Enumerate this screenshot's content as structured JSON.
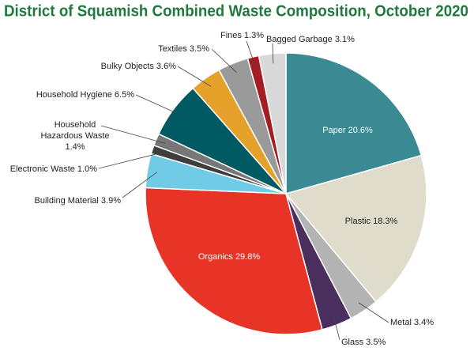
{
  "chart_data": {
    "type": "pie",
    "title": "District of Squamish Combined Waste Composition, October 2020",
    "labels": [
      "Paper 20.6%",
      "Plastic 18.3%",
      "Metal 3.4%",
      "Glass 3.5%",
      "Organics 29.8%",
      "Building Material 3.9%",
      "Electronic Waste 1.0%",
      "Household\nHazardous Waste\n1.4%",
      "Household Hygiene 6.5%",
      "Bulky Objects 3.6%",
      "Textiles 3.5%",
      "Fines 1.3%",
      "Bagged Garbage 3.1%"
    ],
    "values": [
      20.6,
      18.3,
      3.4,
      3.5,
      29.8,
      3.9,
      1.0,
      1.4,
      6.5,
      3.6,
      3.5,
      1.3,
      3.1
    ],
    "colors": [
      "#3a8a93",
      "#e0dccb",
      "#b3b3b3",
      "#4a2e5e",
      "#e83427",
      "#6fcbe6",
      "#3d3d3d",
      "#777777",
      "#005a63",
      "#e5a12a",
      "#9a9a9a",
      "#a31d23",
      "#d9d9d9"
    ]
  }
}
